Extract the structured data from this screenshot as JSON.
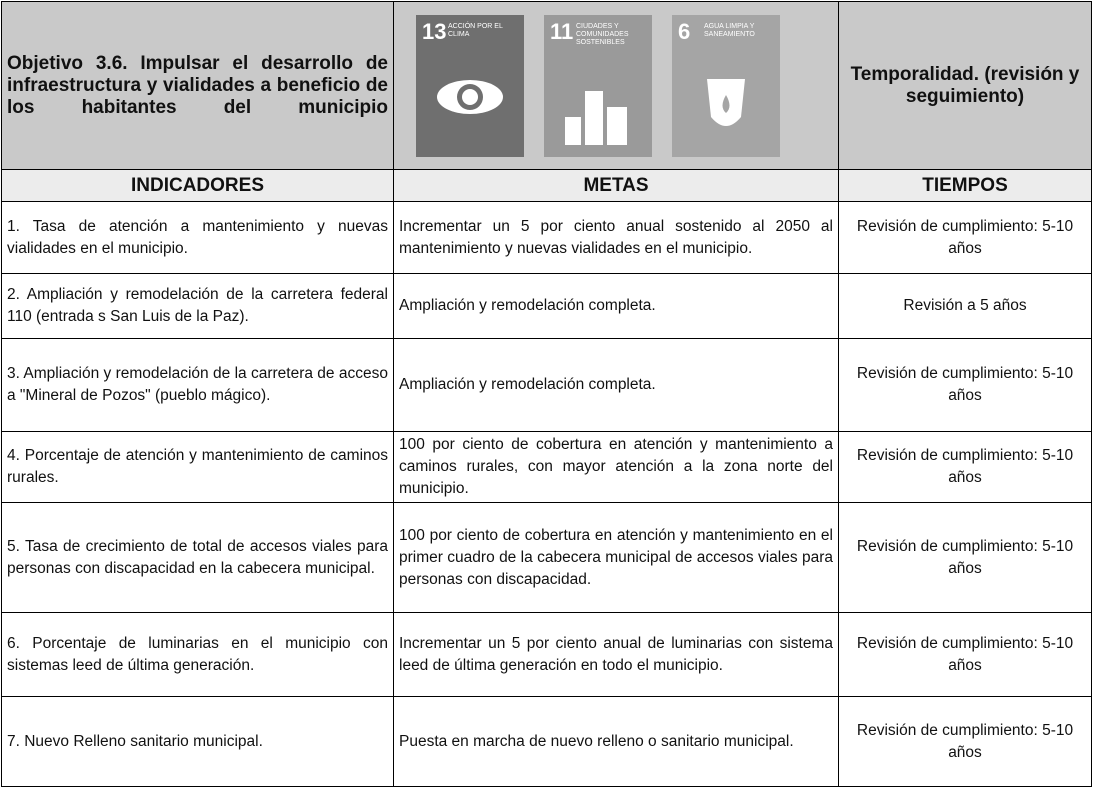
{
  "header": {
    "objective": "Objetivo 3.6. Impulsar el desarrollo de infraestructura y vialidades a beneficio de los habitantes del municipio",
    "sdg_icons": [
      {
        "number": "13",
        "label": "ACCIÓN POR EL CLIMA"
      },
      {
        "number": "11",
        "label": "CIUDADES Y COMUNIDADES SOSTENIBLES"
      },
      {
        "number": "6",
        "label": "AGUA LIMPIA Y SANEAMIENTO"
      }
    ],
    "temporality": "Temporalidad. (revisión y seguimiento)"
  },
  "table": {
    "columns": [
      "INDICADORES",
      "METAS",
      "TIEMPOS"
    ],
    "rows": [
      [
        "1. Tasa de atención a mantenimiento y nuevas vialidades en el municipio.",
        "Incrementar un 5 por ciento anual sostenido al 2050 al mantenimiento y nuevas vialidades en el municipio.",
        "Revisión de cumplimiento: 5-10 años"
      ],
      [
        "2. Ampliación y remodelación de la carretera federal 110 (entrada s San Luis de la Paz).",
        "Ampliación y remodelación completa.",
        "Revisión a 5 años"
      ],
      [
        "3. Ampliación y remodelación de la carretera de acceso a \"Mineral de Pozos\" (pueblo mágico).",
        "Ampliación y remodelación completa.",
        "Revisión de cumplimiento: 5-10 años"
      ],
      [
        "4. Porcentaje de atención y mantenimiento de caminos rurales.",
        "100 por ciento de cobertura en atención y mantenimiento a caminos rurales, con mayor atención a la zona norte del municipio.",
        "Revisión de cumplimiento: 5-10 años"
      ],
      [
        "5. Tasa de crecimiento de total de accesos viales para personas con discapacidad en la cabecera municipal.",
        "100 por ciento de cobertura en atención y mantenimiento en el primer cuadro de la cabecera municipal de accesos viales para personas con discapacidad.",
        "Revisión de cumplimiento: 5-10 años"
      ],
      [
        "6. Porcentaje de luminarias en el municipio con sistemas leed de última generación.",
        "Incrementar un 5 por ciento anual de luminarias con sistema leed de última generación en todo el municipio.",
        "Revisión de cumplimiento: 5-10 años"
      ],
      [
        "7. Nuevo Relleno sanitario municipal.",
        "Puesta en marcha de nuevo relleno o sanitario municipal.",
        "Revisión de cumplimiento: 5-10 años"
      ]
    ]
  }
}
